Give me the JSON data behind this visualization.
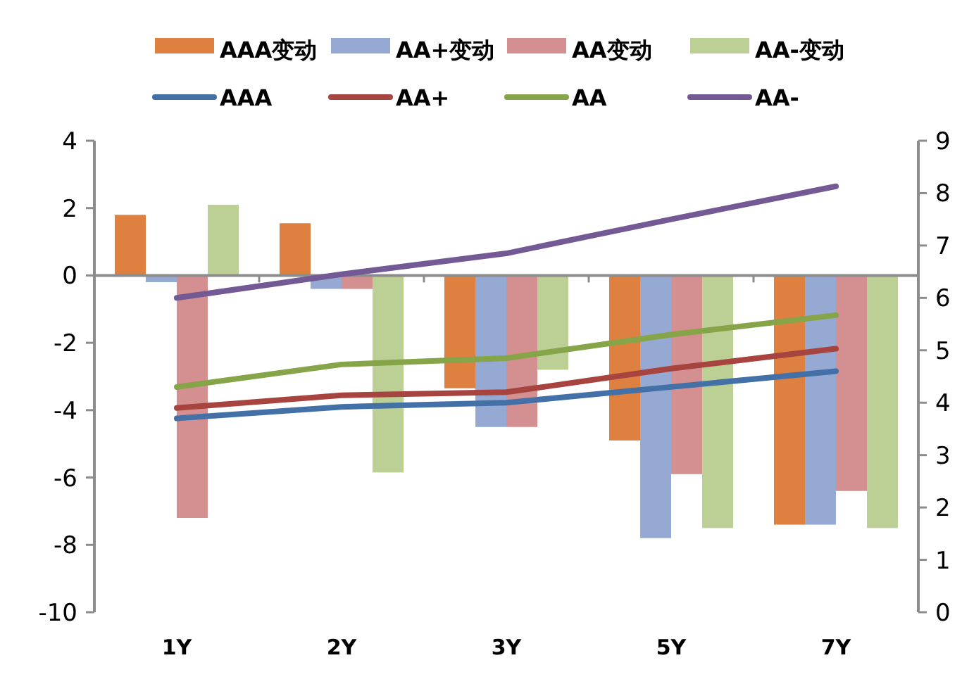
{
  "chart_data": {
    "type": "bar",
    "categories": [
      "1Y",
      "2Y",
      "3Y",
      "5Y",
      "7Y"
    ],
    "series": [
      {
        "name": "AAA变动",
        "color": "#dd8040",
        "values": [
          1.8,
          1.55,
          -3.35,
          -4.9,
          -7.4
        ]
      },
      {
        "name": "AA+变动",
        "color": "#95a9d2",
        "values": [
          -0.2,
          -0.4,
          -4.5,
          -7.8,
          -7.4
        ]
      },
      {
        "name": "AA变动",
        "color": "#d49090",
        "values": [
          -7.2,
          -0.4,
          -4.5,
          -5.9,
          -6.4
        ]
      },
      {
        "name": "AA-变动",
        "color": "#bcd095",
        "values": [
          2.1,
          -5.85,
          -2.8,
          -7.5,
          -7.5
        ]
      },
      {
        "name": "AAA",
        "type": "line",
        "axis": "y2",
        "color": "#4470a8",
        "values": [
          3.7,
          3.92,
          4.0,
          4.3,
          4.6
        ]
      },
      {
        "name": "AA+",
        "type": "line",
        "axis": "y2",
        "color": "#a84440",
        "values": [
          3.9,
          4.14,
          4.2,
          4.65,
          5.03
        ]
      },
      {
        "name": "AA",
        "type": "line",
        "axis": "y2",
        "color": "#86a448",
        "values": [
          4.3,
          4.73,
          4.85,
          5.3,
          5.67
        ]
      },
      {
        "name": "AA-",
        "type": "line",
        "axis": "y2",
        "color": "#745a94",
        "values": [
          6.0,
          6.45,
          6.85,
          7.5,
          8.13
        ]
      }
    ],
    "ylim": [
      -10,
      4
    ],
    "yticks": [
      -10,
      -8,
      -6,
      -4,
      -2,
      0,
      2,
      4
    ],
    "y2lim": [
      0,
      9
    ],
    "y2ticks": [
      0,
      1,
      2,
      3,
      4,
      5,
      6,
      7,
      8,
      9
    ],
    "legend": "top"
  }
}
